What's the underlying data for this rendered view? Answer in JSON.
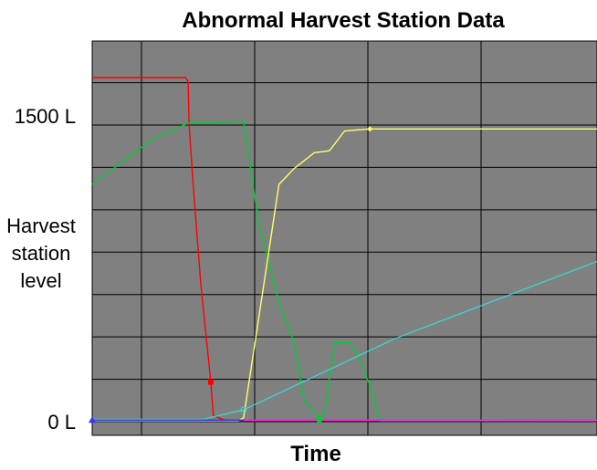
{
  "chart_data": {
    "type": "line",
    "title": "Abnormal Harvest Station Data",
    "xlabel": "Time",
    "ylabel": [
      "Harvest",
      "station",
      "level"
    ],
    "y_ticks": [
      {
        "value": 0,
        "label": "0 L"
      },
      {
        "value": 1500,
        "label": "1500 L"
      }
    ],
    "ylim": [
      0,
      1750
    ],
    "xlim": [
      0,
      100
    ],
    "grid": true,
    "background_color": "#808080",
    "grid_color": "#000000",
    "series": [
      {
        "color": "#ff0000",
        "marker": "square",
        "values": [
          [
            0,
            1740
          ],
          [
            18.5,
            1740
          ],
          [
            19,
            1720
          ],
          [
            19.2,
            1500
          ],
          [
            20,
            1200
          ],
          [
            21.5,
            700
          ],
          [
            23.5,
            200
          ],
          [
            24,
            30
          ],
          [
            25,
            20
          ],
          [
            26,
            10
          ],
          [
            27,
            8
          ],
          [
            28,
            6
          ],
          [
            100,
            5
          ]
        ]
      },
      {
        "color": "#00cc33",
        "marker": "circle",
        "values": [
          [
            0,
            1200
          ],
          [
            12,
            1430
          ],
          [
            19,
            1510
          ],
          [
            24,
            1510
          ],
          [
            30,
            1520
          ],
          [
            33,
            1000
          ],
          [
            37,
            600
          ],
          [
            40,
            400
          ],
          [
            42,
            110
          ],
          [
            44,
            50
          ],
          [
            45,
            10
          ],
          [
            46,
            40
          ],
          [
            48,
            400
          ],
          [
            51,
            400
          ],
          [
            53,
            320
          ],
          [
            55,
            180
          ],
          [
            57,
            5
          ],
          [
            100,
            5
          ]
        ]
      },
      {
        "color": "#ffff66",
        "marker": "diamond",
        "values": [
          [
            0,
            5
          ],
          [
            29,
            5
          ],
          [
            30,
            20
          ],
          [
            37,
            1200
          ],
          [
            40,
            1280
          ],
          [
            43,
            1340
          ],
          [
            44,
            1360
          ],
          [
            47,
            1370
          ],
          [
            50,
            1470
          ],
          [
            55,
            1480
          ],
          [
            58,
            1480
          ],
          [
            100,
            1480
          ]
        ]
      },
      {
        "color": "#33dddd",
        "marker": "circle",
        "values": [
          [
            0,
            12
          ],
          [
            22,
            12
          ],
          [
            30,
            60
          ],
          [
            60,
            420
          ],
          [
            100,
            810
          ]
        ]
      },
      {
        "color": "#3333ff",
        "marker": "triangle",
        "values": [
          [
            0,
            8
          ],
          [
            100,
            8
          ]
        ]
      },
      {
        "color": "#ff33ff",
        "marker": "none",
        "values": [
          [
            30,
            7
          ],
          [
            100,
            7
          ]
        ]
      }
    ]
  }
}
